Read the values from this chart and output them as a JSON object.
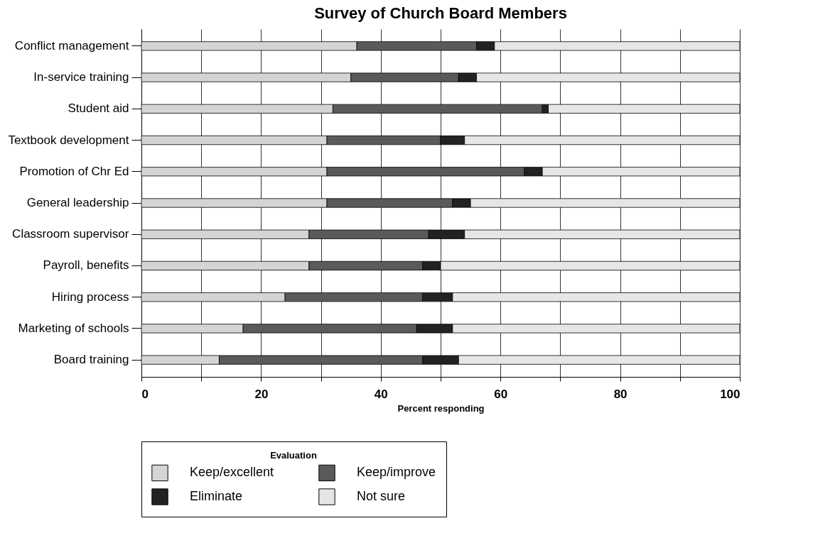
{
  "chart_data": {
    "type": "bar",
    "orientation": "horizontal",
    "stacked": true,
    "title": "Survey of Church Board Members",
    "xlabel": "Percent responding",
    "legend_title": "Evaluation",
    "legend": "bottom",
    "grid": "x",
    "categories": [
      "Conflict management",
      "In-service training",
      "Student aid",
      "Textbook development",
      "Promotion of Chr Ed",
      "General leadership",
      "Classroom supervisor",
      "Payroll, benefits",
      "Hiring process",
      "Marketing of schools",
      "Board training"
    ],
    "series": [
      {
        "name": "Keep/excellent",
        "color": "#d4d4d4",
        "values": [
          36,
          35,
          32,
          31,
          31,
          31,
          28,
          28,
          24,
          17,
          13
        ]
      },
      {
        "name": "Keep/improve",
        "color": "#5a5a5a",
        "values": [
          20,
          18,
          35,
          19,
          33,
          21,
          20,
          19,
          23,
          29,
          34
        ]
      },
      {
        "name": "Eliminate",
        "color": "#222222",
        "values": [
          3,
          3,
          1,
          4,
          3,
          3,
          6,
          3,
          5,
          6,
          6
        ]
      },
      {
        "name": "Not sure",
        "color": "#e6e6e6",
        "values": [
          41,
          44,
          32,
          46,
          33,
          45,
          46,
          50,
          48,
          48,
          47
        ]
      }
    ],
    "xlim": [
      0,
      100
    ],
    "xticks": [
      0,
      {
        "value": 10,
        "label": null
      },
      20,
      {
        "value": 30,
        "label": null
      },
      40,
      {
        "value": 50,
        "label": null
      },
      60,
      {
        "value": 70,
        "label": null
      },
      80,
      {
        "value": 90,
        "label": null
      },
      100
    ]
  }
}
